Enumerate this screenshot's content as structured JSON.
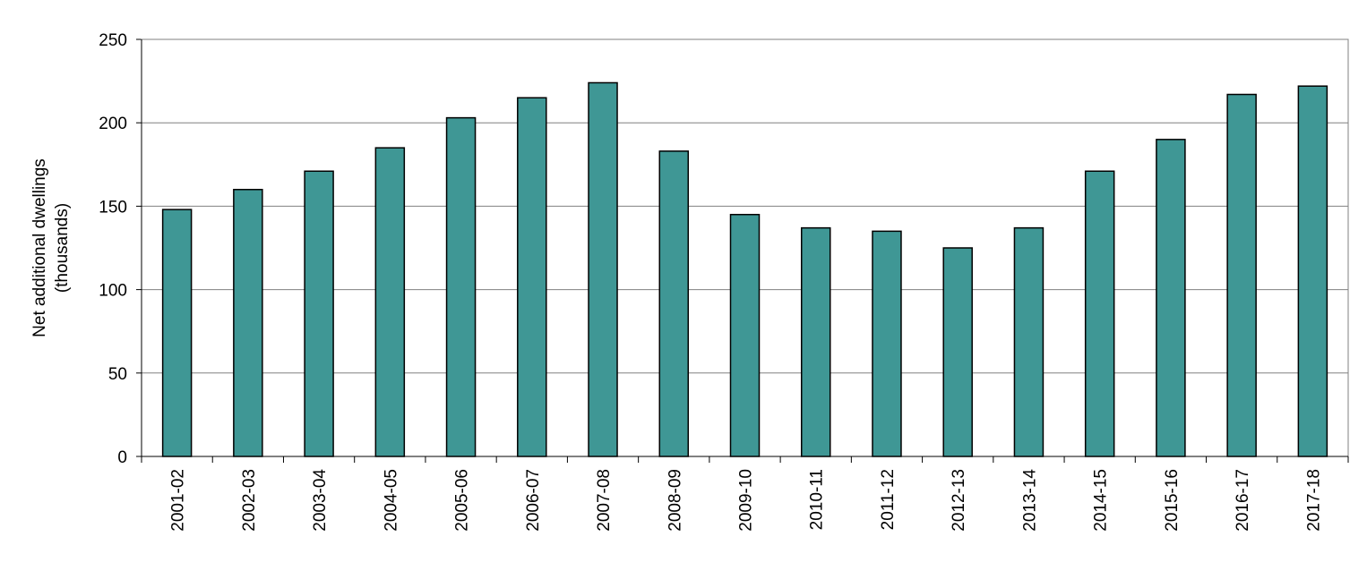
{
  "chart_data": {
    "type": "bar",
    "y_label": [
      "Net additional dwellings",
      "(thousands)"
    ],
    "categories": [
      "2001-02",
      "2002-03",
      "2003-04",
      "2004-05",
      "2005-06",
      "2006-07",
      "2007-08",
      "2008-09",
      "2009-10",
      "2010-11",
      "2011-12",
      "2012-13",
      "2013-14",
      "2014-15",
      "2015-16",
      "2016-17",
      "2017-18"
    ],
    "values": [
      148,
      160,
      171,
      185,
      203,
      215,
      224,
      183,
      145,
      137,
      135,
      125,
      137,
      171,
      190,
      217,
      222
    ],
    "color": "#3f9795",
    "ylim": [
      0,
      250
    ],
    "yticks": [
      0,
      50,
      100,
      150,
      200,
      250
    ],
    "grid": true
  }
}
